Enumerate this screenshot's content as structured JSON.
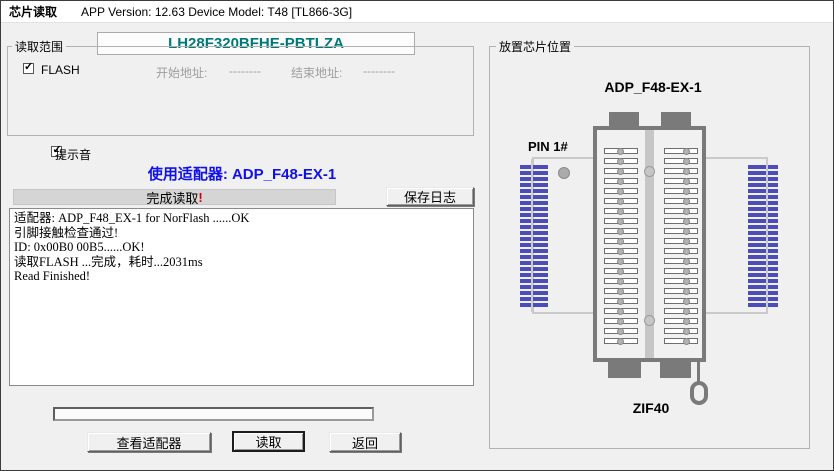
{
  "window": {
    "title": "芯片读取",
    "app_info": "APP Version: 12.63 Device Model: T48 [TL866-3G]"
  },
  "chip": {
    "name": "LH28F320BFHE-PBTLZA"
  },
  "read_range": {
    "group_label": "读取范围",
    "flash_label": "FLASH",
    "flash_checked": "✓",
    "start_label": "开始地址:",
    "start_value": "--------",
    "end_label": "结束地址:",
    "end_value": "--------"
  },
  "beep": {
    "label": "提示音",
    "checked": "✓"
  },
  "adapter_line": "使用适配器: ADP_F48-EX-1",
  "status_bar": {
    "text": "完成读取",
    "bang": "!"
  },
  "toolbar": {
    "save_log_label": "保存日志"
  },
  "log": {
    "line1": "适配器:  ADP_F48_EX-1 for NorFlash  ......OK",
    "line2": "引脚接触检查通过!",
    "line3": "ID: 0x00B0 00B5......OK!",
    "line4": "读取FLASH ...完成，耗时...2031ms",
    "line5": "Read Finished!"
  },
  "buttons": {
    "view_adapter": "查看适配器",
    "read": "读取",
    "back": "返回"
  },
  "placement": {
    "group_label": "放置芯片位置",
    "adapter_title": "ADP_F48-EX-1",
    "pin1_label": "PIN 1#",
    "socket_label": "ZIF40",
    "pins_per_column": 20
  },
  "colors": {
    "chip_name_teal": "#007878",
    "adapter_blue": "#0f0ff0",
    "comb_blue": "#4d4dba",
    "status_bang_red": "#cf0000"
  }
}
